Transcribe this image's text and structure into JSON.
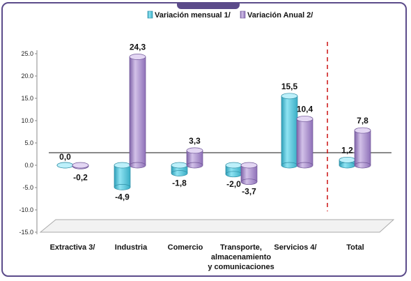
{
  "chart_data": {
    "type": "bar",
    "categories": [
      "Extractiva  3/",
      "Industria",
      "Comercio",
      "Transporte, almacenamiento y comunicaciones",
      "Servicios 4/",
      "Total"
    ],
    "category_lines": [
      [
        "Extractiva  3/"
      ],
      [
        "Industria"
      ],
      [
        "Comercio"
      ],
      [
        "Transporte,",
        "almacenamiento",
        "y comunicaciones"
      ],
      [
        "Servicios 4/"
      ],
      [
        "Total"
      ]
    ],
    "series": [
      {
        "name": "Variación mensual 1/",
        "values": [
          0.0,
          -4.9,
          -1.8,
          -2.0,
          15.5,
          1.2
        ],
        "labels": [
          "0,0",
          "-4,9",
          "-1,8",
          "-2,0",
          "15,5",
          "1,2"
        ],
        "color": "#4fc3d9"
      },
      {
        "name": "Variación Anual  2/",
        "values": [
          -0.2,
          24.3,
          3.3,
          -3.7,
          10.4,
          7.8
        ],
        "labels": [
          "-0,2",
          "24,3",
          "3,3",
          "-3,7",
          "10,4",
          "7,8"
        ],
        "color": "#a084c4"
      }
    ],
    "y_ticks": [
      "25.0",
      "20.0",
      "15.0",
      "10.0",
      "5.0",
      "0.0",
      "-5.0",
      "-10.0",
      "-15.0"
    ],
    "ylim": [
      -15,
      25
    ],
    "legend_position": "top",
    "grid": false
  }
}
